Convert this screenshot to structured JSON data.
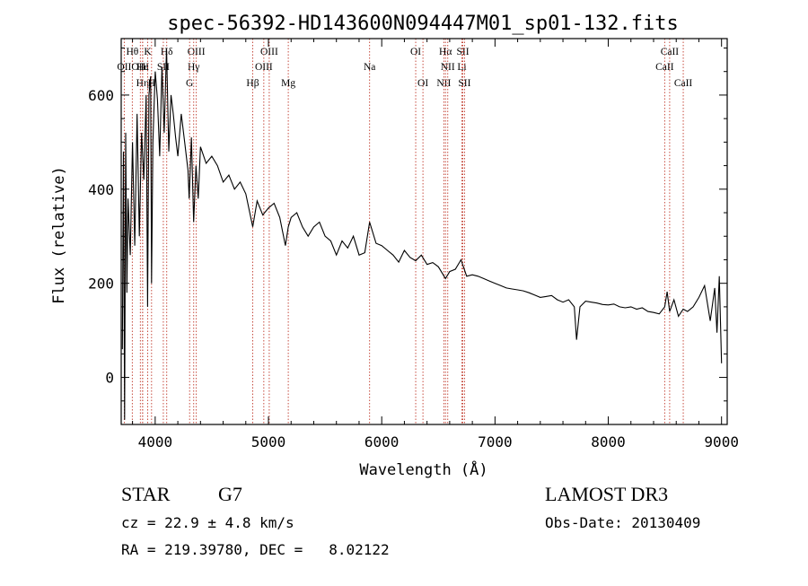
{
  "chart_data": {
    "type": "line",
    "title": "spec-56392-HD143600N094447M01_sp01-132.fits",
    "xlabel": "Wavelength (Å)",
    "ylabel": "Flux (relative)",
    "xlim": [
      3700,
      9050
    ],
    "ylim": [
      -100,
      720
    ],
    "xticks": [
      4000,
      5000,
      6000,
      7000,
      8000,
      9000
    ],
    "xtick_labels": [
      "4000",
      "5000",
      "6000",
      "7000",
      "8000",
      "9000"
    ],
    "yticks": [
      0,
      200,
      400,
      600
    ],
    "ytick_labels": [
      "0",
      "200",
      "400",
      "600"
    ],
    "series": [
      {
        "name": "flux",
        "x": [
          3710,
          3720,
          3730,
          3740,
          3750,
          3760,
          3780,
          3800,
          3820,
          3840,
          3860,
          3880,
          3900,
          3920,
          3933,
          3945,
          3960,
          3968,
          3980,
          4000,
          4020,
          4040,
          4060,
          4080,
          4100,
          4120,
          4140,
          4160,
          4180,
          4200,
          4230,
          4260,
          4290,
          4300,
          4320,
          4340,
          4360,
          4380,
          4400,
          4450,
          4500,
          4550,
          4600,
          4650,
          4700,
          4750,
          4800,
          4861,
          4900,
          4950,
          5000,
          5050,
          5100,
          5150,
          5175,
          5200,
          5250,
          5300,
          5350,
          5400,
          5450,
          5500,
          5550,
          5600,
          5650,
          5700,
          5750,
          5800,
          5850,
          5893,
          5950,
          6000,
          6050,
          6100,
          6150,
          6200,
          6250,
          6300,
          6350,
          6400,
          6450,
          6500,
          6563,
          6600,
          6650,
          6700,
          6750,
          6800,
          6850,
          6900,
          6950,
          7000,
          7050,
          7100,
          7150,
          7200,
          7250,
          7300,
          7350,
          7400,
          7450,
          7500,
          7550,
          7600,
          7650,
          7700,
          7720,
          7750,
          7800,
          7850,
          7900,
          7950,
          8000,
          8050,
          8100,
          8150,
          8200,
          8250,
          8300,
          8350,
          8400,
          8450,
          8498,
          8520,
          8542,
          8580,
          8620,
          8662,
          8700,
          8750,
          8800,
          8850,
          8900,
          8940,
          8960,
          8980,
          9000
        ],
        "y": [
          60,
          480,
          -90,
          520,
          180,
          380,
          260,
          500,
          280,
          560,
          300,
          520,
          420,
          600,
          150,
          600,
          640,
          200,
          500,
          650,
          590,
          470,
          660,
          520,
          700,
          480,
          600,
          560,
          510,
          470,
          560,
          500,
          440,
          380,
          510,
          330,
          450,
          380,
          490,
          455,
          470,
          450,
          415,
          430,
          400,
          415,
          390,
          320,
          375,
          345,
          360,
          370,
          340,
          280,
          320,
          340,
          350,
          320,
          300,
          320,
          330,
          300,
          290,
          260,
          290,
          275,
          300,
          260,
          265,
          330,
          285,
          280,
          270,
          260,
          245,
          270,
          255,
          248,
          260,
          240,
          244,
          235,
          210,
          225,
          230,
          250,
          215,
          218,
          215,
          210,
          205,
          200,
          195,
          190,
          188,
          186,
          184,
          180,
          175,
          170,
          172,
          174,
          165,
          160,
          165,
          150,
          80,
          150,
          162,
          160,
          158,
          155,
          154,
          156,
          150,
          148,
          150,
          145,
          148,
          140,
          138,
          135,
          150,
          182,
          140,
          165,
          130,
          145,
          140,
          150,
          170,
          195,
          120,
          190,
          95,
          215,
          30
        ]
      }
    ],
    "line_markers": [
      {
        "label": "OII",
        "wavelength": 3727,
        "row": 2
      },
      {
        "label": "Hθ",
        "wavelength": 3798,
        "row": 1
      },
      {
        "label": "OIII",
        "wavelength": 3869,
        "row": 2
      },
      {
        "label": "Hη",
        "wavelength": 3889,
        "row": 3
      },
      {
        "label": "He",
        "wavelength": 3889,
        "row": 2
      },
      {
        "label": "K",
        "wavelength": 3934,
        "row": 1
      },
      {
        "label": "H",
        "wavelength": 3968,
        "row": 3
      },
      {
        "label": "Hδ",
        "wavelength": 4102,
        "row": 1
      },
      {
        "label": "SII",
        "wavelength": 4072,
        "row": 2
      },
      {
        "label": "OIII",
        "wavelength": 4363,
        "row": 1
      },
      {
        "label": "Hγ",
        "wavelength": 4340,
        "row": 2
      },
      {
        "label": "G",
        "wavelength": 4304,
        "row": 3
      },
      {
        "label": "Hβ",
        "wavelength": 4861,
        "row": 3
      },
      {
        "label": "OIII",
        "wavelength": 4959,
        "row": 2
      },
      {
        "label": "OIII",
        "wavelength": 5007,
        "row": 1
      },
      {
        "label": "Mg",
        "wavelength": 5175,
        "row": 3
      },
      {
        "label": "Na",
        "wavelength": 5893,
        "row": 2
      },
      {
        "label": "OI",
        "wavelength": 6300,
        "row": 1
      },
      {
        "label": "OI",
        "wavelength": 6364,
        "row": 3
      },
      {
        "label": "NII",
        "wavelength": 6548,
        "row": 3
      },
      {
        "label": "Hα",
        "wavelength": 6563,
        "row": 1
      },
      {
        "label": "NII",
        "wavelength": 6583,
        "row": 2
      },
      {
        "label": "Li",
        "wavelength": 6708,
        "row": 2
      },
      {
        "label": "SII",
        "wavelength": 6716,
        "row": 1
      },
      {
        "label": "SII",
        "wavelength": 6731,
        "row": 3
      },
      {
        "label": "CaII",
        "wavelength": 8498,
        "row": 2
      },
      {
        "label": "CaII",
        "wavelength": 8542,
        "row": 1
      },
      {
        "label": "CaII",
        "wavelength": 8662,
        "row": 3
      }
    ],
    "grid": false,
    "legend": "none"
  },
  "info": {
    "object_class": "STAR",
    "subclass": "G7",
    "cz": "cz = 22.9 ± 4.8 km/s",
    "coords": "RA = 219.39780, DEC =   8.02122",
    "survey": "LAMOST DR3",
    "obs_date": "Obs-Date: 20130409"
  },
  "colors": {
    "spectrum": "#000000",
    "marker_lines": "#c0392b",
    "axes": "#000000",
    "background": "#ffffff"
  }
}
